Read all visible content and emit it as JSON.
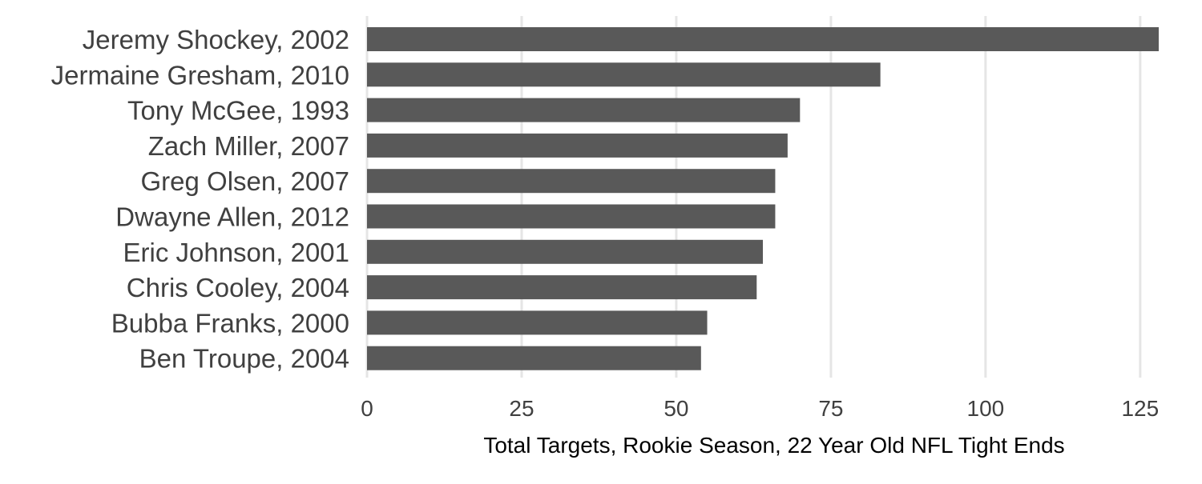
{
  "chart_data": {
    "type": "bar",
    "orientation": "horizontal",
    "categories": [
      "Jeremy Shockey, 2002",
      "Jermaine Gresham, 2010",
      "Tony McGee, 1993",
      "Zach Miller, 2007",
      "Greg Olsen, 2007",
      "Dwayne Allen, 2012",
      "Eric Johnson, 2001",
      "Chris Cooley, 2004",
      "Bubba Franks, 2000",
      "Ben Troupe, 2004"
    ],
    "values": [
      128,
      83,
      70,
      68,
      66,
      66,
      64,
      63,
      55,
      54
    ],
    "xlabel": "Total Targets, Rookie Season, 22 Year Old NFL Tight Ends",
    "ylabel": "",
    "title": "",
    "xlim": [
      0,
      128
    ],
    "xticks": [
      0,
      25,
      50,
      75,
      100,
      125
    ],
    "grid": "vertical",
    "legend": "none",
    "colors": {
      "bar": "#595959",
      "grid": "#e5e5e5"
    }
  }
}
